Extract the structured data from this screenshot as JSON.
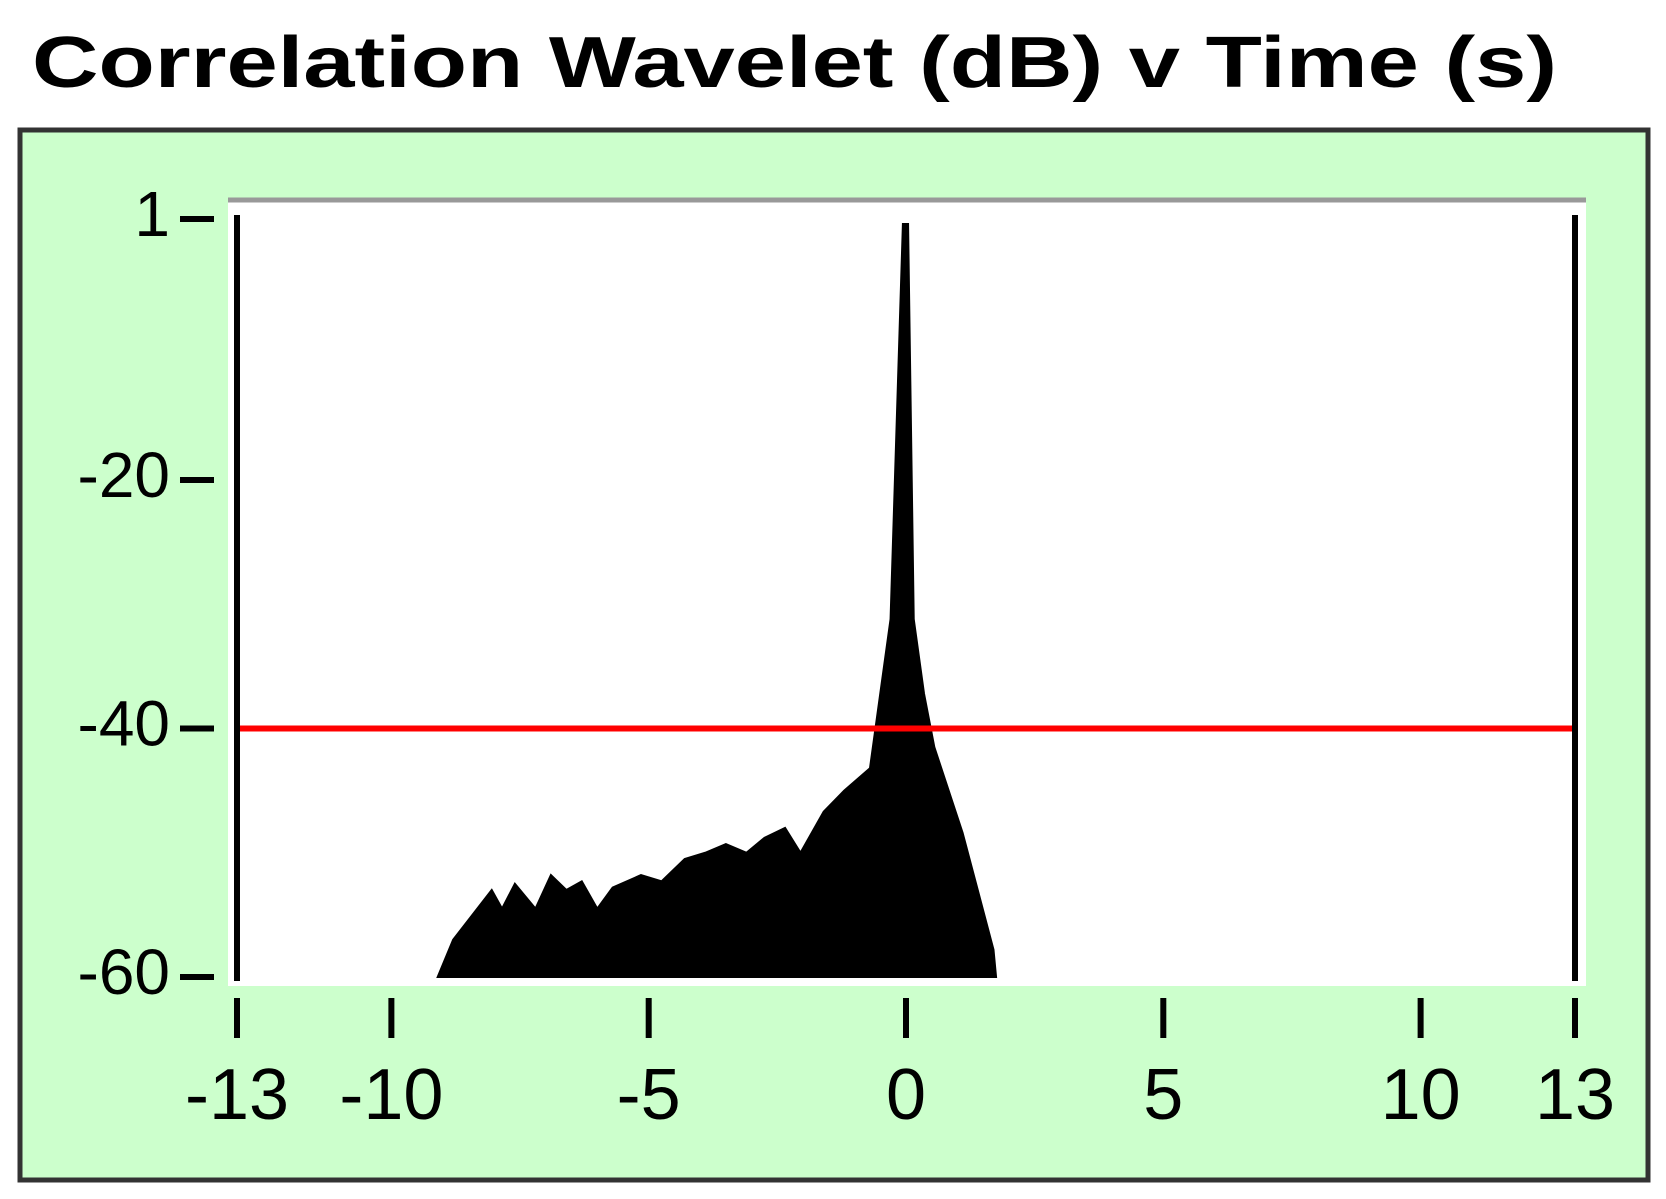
{
  "chart_data": {
    "type": "area",
    "title": "Correlation Wavelet (dB) v Time (s)",
    "x": [
      -9.1,
      -8.8,
      -8.05,
      -7.85,
      -7.6,
      -7.2,
      -6.9,
      -6.6,
      -6.3,
      -6.0,
      -5.7,
      -5.15,
      -4.75,
      -4.3,
      -3.9,
      -3.5,
      -3.1,
      -2.75,
      -2.35,
      -2.05,
      -1.6,
      -1.2,
      -0.7,
      -0.5,
      -0.3,
      -0.06,
      0.04,
      0.15,
      0.35,
      0.55,
      1.1,
      1.7,
      1.75
    ],
    "values": [
      -60,
      -57,
      -53,
      -54.5,
      -52.5,
      -54.5,
      -51.8,
      -53,
      -52.3,
      -54.5,
      -52.8,
      -51.8,
      -52.3,
      -50.5,
      -50,
      -49.3,
      -50,
      -48.8,
      -48,
      -50,
      -46.7,
      -45,
      -43.2,
      -37.2,
      -31.2,
      0.6,
      0.6,
      -31.2,
      -37.2,
      -41.5,
      -48.4,
      -57.8,
      -60
    ],
    "color": "#000000",
    "threshold": -40,
    "threshold_color": "#ff0000",
    "background": "#ccffcc",
    "xlim": [
      -13,
      13
    ],
    "ylim": [
      -60,
      1
    ],
    "xticks": [
      -13,
      -10,
      -5,
      0,
      5,
      10,
      13
    ],
    "yticks": [
      1,
      -20,
      -40,
      -60
    ]
  }
}
